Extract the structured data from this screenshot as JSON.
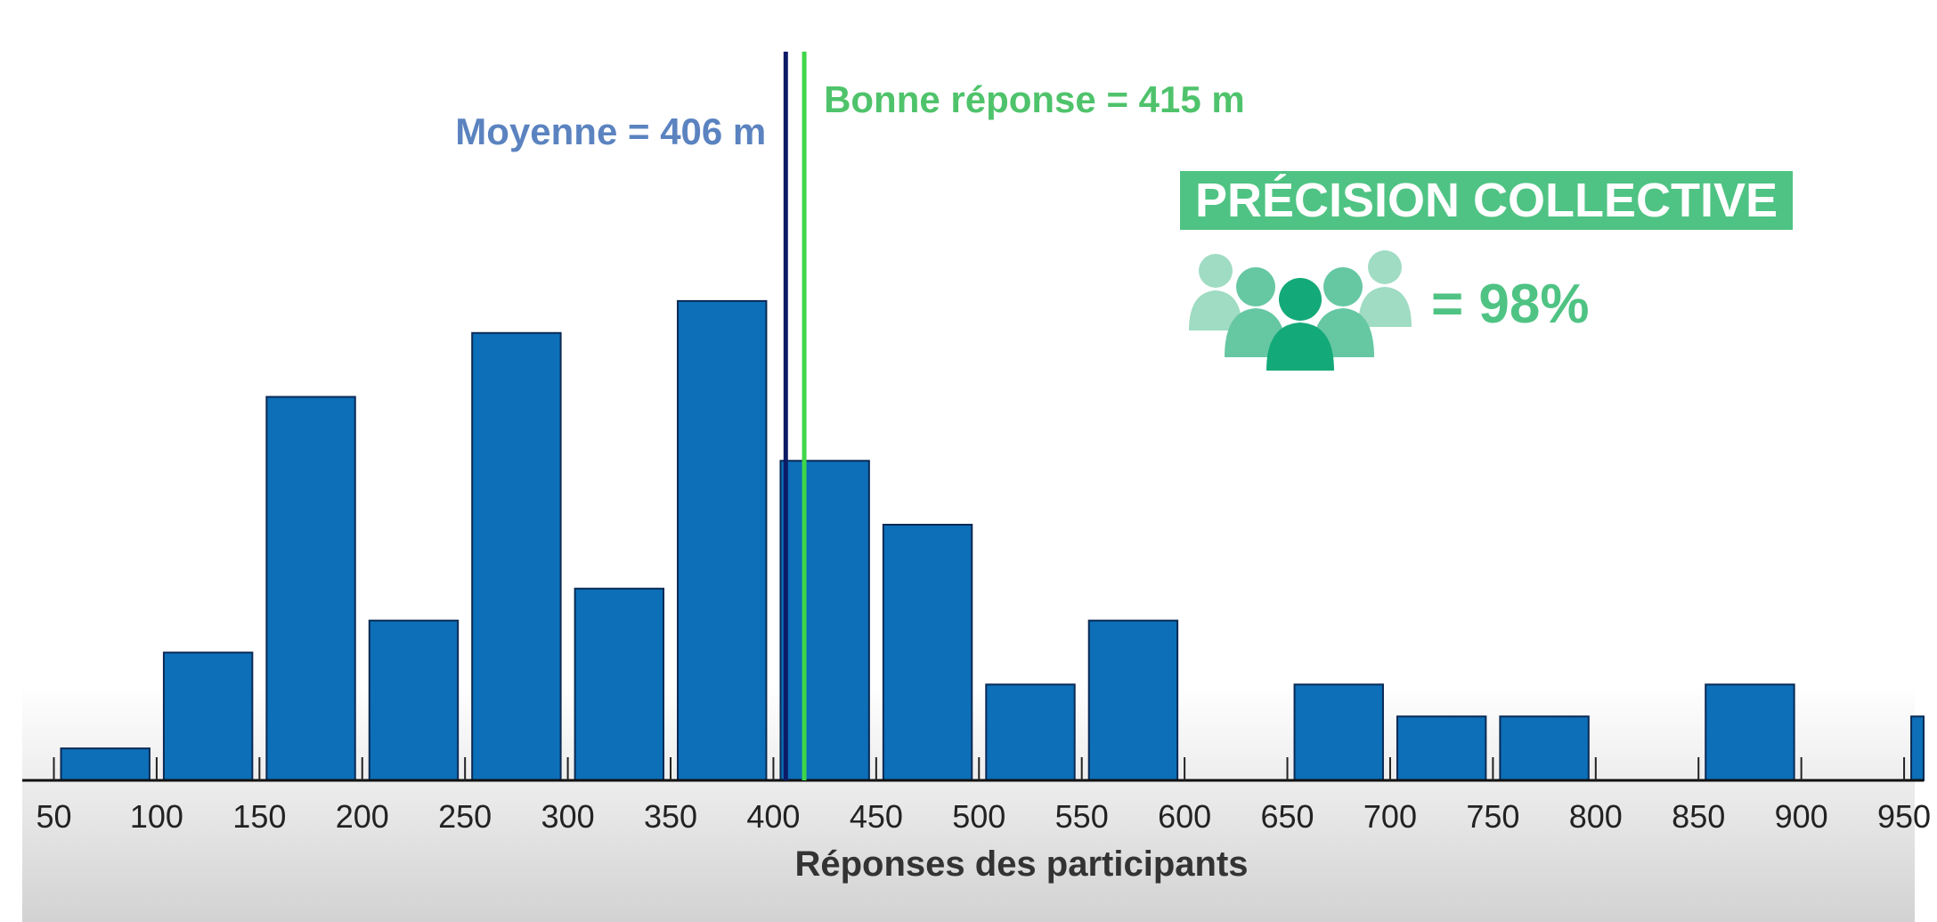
{
  "chart_data": {
    "type": "bar",
    "xlabel": "Réponses des participants",
    "x_ticks": [
      50,
      100,
      150,
      200,
      250,
      300,
      350,
      400,
      450,
      500,
      550,
      600,
      650,
      700,
      750,
      800,
      850,
      900,
      950
    ],
    "tick_labels": [
      "50",
      "100",
      "150",
      "200",
      "250",
      "300",
      "350",
      "400",
      "450",
      "500",
      "550",
      "600",
      "650",
      "700",
      "750",
      "800",
      "850",
      "900",
      "950"
    ],
    "bins": [
      {
        "x0": 50,
        "x1": 100,
        "count": 1
      },
      {
        "x0": 100,
        "x1": 150,
        "count": 4
      },
      {
        "x0": 150,
        "x1": 200,
        "count": 12
      },
      {
        "x0": 200,
        "x1": 250,
        "count": 5
      },
      {
        "x0": 250,
        "x1": 300,
        "count": 14
      },
      {
        "x0": 300,
        "x1": 350,
        "count": 6
      },
      {
        "x0": 350,
        "x1": 400,
        "count": 15
      },
      {
        "x0": 400,
        "x1": 450,
        "count": 10
      },
      {
        "x0": 450,
        "x1": 500,
        "count": 8
      },
      {
        "x0": 500,
        "x1": 550,
        "count": 3
      },
      {
        "x0": 550,
        "x1": 600,
        "count": 5
      },
      {
        "x0": 600,
        "x1": 650,
        "count": 0
      },
      {
        "x0": 650,
        "x1": 700,
        "count": 3
      },
      {
        "x0": 700,
        "x1": 750,
        "count": 2
      },
      {
        "x0": 750,
        "x1": 800,
        "count": 2
      },
      {
        "x0": 800,
        "x1": 850,
        "count": 0
      },
      {
        "x0": 850,
        "x1": 900,
        "count": 3
      },
      {
        "x0": 900,
        "x1": 950,
        "count": 0
      },
      {
        "x0": 950,
        "x1": 1000,
        "count": 2
      }
    ],
    "xlim": [
      50,
      1000
    ],
    "ylim": [
      0,
      16
    ],
    "grid": false,
    "reference_lines": [
      {
        "value": 406,
        "label": "Moyenne = 406 m",
        "color": "#0d1a66",
        "label_color": "#5b83c0"
      },
      {
        "value": 415,
        "label": "Bonne réponse = 415 m",
        "color": "#3fd64a",
        "label_color": "#4fc36b"
      }
    ],
    "bar_color": "#0c6fb8"
  },
  "annotation": {
    "title": "PRÉCISION COLLECTIVE",
    "value": "= 98%",
    "icon": "group-of-people-icon",
    "color": "#4fc383"
  }
}
